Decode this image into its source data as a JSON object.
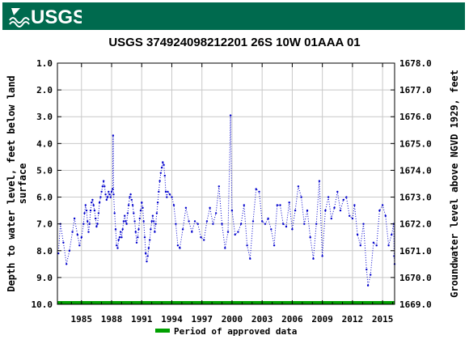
{
  "header": {
    "logo_text": "USGS",
    "brand_color": "#006a4e"
  },
  "chart_data": {
    "type": "scatter",
    "title": "USGS 374924098212201 26S 10W 01AAA 01",
    "ylabel_left": "Depth to water level, feet below land surface",
    "ylabel_right": "Groundwater level above NGVD 1929, feet",
    "y_reversed": true,
    "ylim_left": [
      1.0,
      10.0
    ],
    "ylim_right": [
      1669.0,
      1678.0
    ],
    "yticks_left": [
      "1.0",
      "2.0",
      "3.0",
      "4.0",
      "5.0",
      "6.0",
      "7.0",
      "8.0",
      "9.0",
      "10.0"
    ],
    "yticks_right": [
      "1678.0",
      "1677.0",
      "1676.0",
      "1675.0",
      "1674.0",
      "1673.0",
      "1672.0",
      "1671.0",
      "1670.0",
      "1669.0"
    ],
    "xlim": [
      1982.6,
      2016.2
    ],
    "xticks": [
      "1985",
      "1988",
      "1991",
      "1994",
      "1997",
      "2000",
      "2003",
      "2006",
      "2009",
      "2012",
      "2015"
    ],
    "grid": true,
    "series_color": "#0000cc",
    "approved_color": "#00a000",
    "legend": {
      "label": "Period of approved data",
      "position": "bottom"
    },
    "approved_period": [
      1982.6,
      2016.2
    ],
    "points": [
      [
        1982.7,
        8.1
      ],
      [
        1982.9,
        7.0
      ],
      [
        1983.2,
        7.7
      ],
      [
        1983.5,
        8.5
      ],
      [
        1983.8,
        8.0
      ],
      [
        1984.1,
        7.3
      ],
      [
        1984.3,
        6.8
      ],
      [
        1984.6,
        7.4
      ],
      [
        1984.8,
        7.8
      ],
      [
        1985.0,
        7.5
      ],
      [
        1985.2,
        7.0
      ],
      [
        1985.3,
        6.6
      ],
      [
        1985.4,
        6.3
      ],
      [
        1985.5,
        6.5
      ],
      [
        1985.6,
        6.9
      ],
      [
        1985.7,
        7.3
      ],
      [
        1985.8,
        7.0
      ],
      [
        1985.9,
        6.5
      ],
      [
        1986.0,
        6.2
      ],
      [
        1986.1,
        6.1
      ],
      [
        1986.2,
        6.3
      ],
      [
        1986.3,
        6.5
      ],
      [
        1986.4,
        6.8
      ],
      [
        1986.5,
        7.1
      ],
      [
        1986.6,
        7.0
      ],
      [
        1986.7,
        6.6
      ],
      [
        1986.8,
        6.2
      ],
      [
        1986.9,
        6.0
      ],
      [
        1987.0,
        5.8
      ],
      [
        1987.1,
        5.6
      ],
      [
        1987.2,
        5.4
      ],
      [
        1987.3,
        5.6
      ],
      [
        1987.4,
        5.9
      ],
      [
        1987.5,
        6.1
      ],
      [
        1987.6,
        6.0
      ],
      [
        1987.7,
        5.8
      ],
      [
        1987.8,
        5.9
      ],
      [
        1987.9,
        6.0
      ],
      [
        1988.0,
        5.8
      ],
      [
        1988.1,
        5.7
      ],
      [
        1988.15,
        3.7
      ],
      [
        1988.2,
        5.9
      ],
      [
        1988.3,
        6.6
      ],
      [
        1988.4,
        7.2
      ],
      [
        1988.5,
        7.8
      ],
      [
        1988.6,
        7.9
      ],
      [
        1988.7,
        7.6
      ],
      [
        1988.8,
        7.5
      ],
      [
        1988.9,
        7.3
      ],
      [
        1989.0,
        7.5
      ],
      [
        1989.1,
        7.2
      ],
      [
        1989.2,
        6.9
      ],
      [
        1989.3,
        6.7
      ],
      [
        1989.4,
        6.9
      ],
      [
        1989.5,
        7.0
      ],
      [
        1989.6,
        6.6
      ],
      [
        1989.7,
        6.3
      ],
      [
        1989.8,
        6.0
      ],
      [
        1989.9,
        5.9
      ],
      [
        1990.0,
        6.1
      ],
      [
        1990.1,
        6.3
      ],
      [
        1990.2,
        6.6
      ],
      [
        1990.3,
        6.9
      ],
      [
        1990.4,
        7.3
      ],
      [
        1990.5,
        7.7
      ],
      [
        1990.6,
        7.5
      ],
      [
        1990.7,
        7.2
      ],
      [
        1990.8,
        6.8
      ],
      [
        1990.9,
        6.5
      ],
      [
        1991.0,
        6.2
      ],
      [
        1991.1,
        6.4
      ],
      [
        1991.2,
        6.9
      ],
      [
        1991.3,
        7.5
      ],
      [
        1991.4,
        8.1
      ],
      [
        1991.5,
        8.4
      ],
      [
        1991.6,
        8.2
      ],
      [
        1991.7,
        7.9
      ],
      [
        1991.8,
        7.6
      ],
      [
        1991.9,
        7.2
      ],
      [
        1992.0,
        6.9
      ],
      [
        1992.1,
        6.7
      ],
      [
        1992.2,
        6.9
      ],
      [
        1992.3,
        7.3
      ],
      [
        1992.4,
        7.0
      ],
      [
        1992.5,
        6.6
      ],
      [
        1992.6,
        6.2
      ],
      [
        1992.7,
        5.8
      ],
      [
        1992.8,
        5.4
      ],
      [
        1992.9,
        5.1
      ],
      [
        1993.0,
        4.9
      ],
      [
        1993.1,
        4.7
      ],
      [
        1993.2,
        4.8
      ],
      [
        1993.3,
        5.2
      ],
      [
        1993.4,
        5.8
      ],
      [
        1993.5,
        6.0
      ],
      [
        1993.6,
        5.8
      ],
      [
        1993.8,
        5.9
      ],
      [
        1994.0,
        6.0
      ],
      [
        1994.2,
        6.3
      ],
      [
        1994.4,
        7.0
      ],
      [
        1994.6,
        7.8
      ],
      [
        1994.8,
        7.9
      ],
      [
        1995.1,
        7.2
      ],
      [
        1995.4,
        6.4
      ],
      [
        1995.7,
        6.9
      ],
      [
        1996.0,
        7.3
      ],
      [
        1996.3,
        6.9
      ],
      [
        1996.6,
        7.0
      ],
      [
        1996.9,
        7.5
      ],
      [
        1997.2,
        7.6
      ],
      [
        1997.5,
        6.9
      ],
      [
        1997.8,
        6.4
      ],
      [
        1998.1,
        7.0
      ],
      [
        1998.4,
        6.6
      ],
      [
        1998.7,
        5.6
      ],
      [
        1999.0,
        7.0
      ],
      [
        1999.3,
        7.9
      ],
      [
        1999.6,
        7.3
      ],
      [
        1999.85,
        2.95
      ],
      [
        2000.0,
        6.5
      ],
      [
        2000.3,
        7.4
      ],
      [
        2000.6,
        7.3
      ],
      [
        2000.9,
        7.0
      ],
      [
        2001.2,
        6.3
      ],
      [
        2001.5,
        7.8
      ],
      [
        2001.8,
        8.3
      ],
      [
        2002.1,
        6.9
      ],
      [
        2002.4,
        5.7
      ],
      [
        2002.7,
        5.8
      ],
      [
        2003.0,
        6.9
      ],
      [
        2003.3,
        7.0
      ],
      [
        2003.6,
        6.8
      ],
      [
        2003.9,
        7.2
      ],
      [
        2004.2,
        7.8
      ],
      [
        2004.5,
        6.3
      ],
      [
        2004.8,
        6.3
      ],
      [
        2005.1,
        7.0
      ],
      [
        2005.4,
        7.1
      ],
      [
        2005.7,
        6.2
      ],
      [
        2006.0,
        7.2
      ],
      [
        2006.3,
        6.5
      ],
      [
        2006.6,
        5.6
      ],
      [
        2006.9,
        6.0
      ],
      [
        2007.2,
        7.0
      ],
      [
        2007.5,
        6.5
      ],
      [
        2007.8,
        7.5
      ],
      [
        2008.1,
        8.3
      ],
      [
        2008.4,
        7.0
      ],
      [
        2008.7,
        5.4
      ],
      [
        2009.0,
        8.2
      ],
      [
        2009.3,
        6.5
      ],
      [
        2009.6,
        6.0
      ],
      [
        2009.9,
        6.8
      ],
      [
        2010.2,
        6.4
      ],
      [
        2010.5,
        5.8
      ],
      [
        2010.8,
        6.5
      ],
      [
        2011.1,
        6.1
      ],
      [
        2011.4,
        6.0
      ],
      [
        2011.7,
        6.7
      ],
      [
        2012.0,
        6.8
      ],
      [
        2012.2,
        6.3
      ],
      [
        2012.5,
        7.4
      ],
      [
        2012.8,
        7.8
      ],
      [
        2013.1,
        7.0
      ],
      [
        2013.4,
        8.7
      ],
      [
        2013.55,
        9.3
      ],
      [
        2013.8,
        8.9
      ],
      [
        2014.1,
        7.7
      ],
      [
        2014.4,
        7.8
      ],
      [
        2014.7,
        6.5
      ],
      [
        2015.0,
        6.3
      ],
      [
        2015.3,
        6.7
      ],
      [
        2015.6,
        7.8
      ],
      [
        2015.9,
        7.4
      ],
      [
        2016.1,
        7.0
      ],
      [
        2016.15,
        8.2
      ],
      [
        2016.2,
        8.5
      ]
    ]
  }
}
